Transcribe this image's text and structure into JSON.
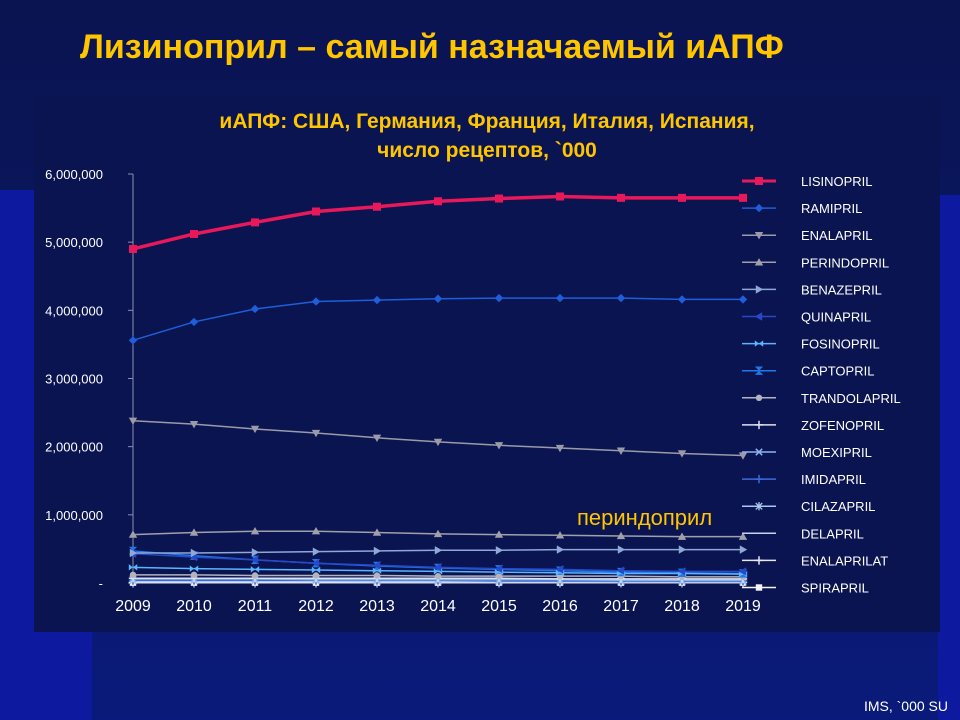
{
  "slide": {
    "title": "Лизиноприл – самый назначаемый иАПФ",
    "source": "IMS, `000 SU"
  },
  "colors": {
    "background": "#0a1450",
    "title": "#ffc600",
    "text": "#ffffff"
  },
  "chart_data": {
    "type": "line",
    "title_line1": "иАПФ: США, Германия, Франция, Италия, Испания,",
    "title_line2": "число рецептов, `000",
    "annotation": "периндоприл",
    "x": [
      "2009",
      "2010",
      "2011",
      "2012",
      "2013",
      "2014",
      "2015",
      "2016",
      "2017",
      "2018",
      "2019"
    ],
    "ylim": [
      0,
      6000000
    ],
    "yticks": [
      0,
      1000000,
      2000000,
      3000000,
      4000000,
      5000000,
      6000000
    ],
    "ytick_labels": [
      "-",
      "1,000,000",
      "2,000,000",
      "3,000,000",
      "4,000,000",
      "5,000,000",
      "6,000,000"
    ],
    "legend_position": "right",
    "series": [
      {
        "name": "LISINOPRIL",
        "color": "#e8195a",
        "marker": "square",
        "width": 3.5,
        "values": [
          4900000,
          5120000,
          5290000,
          5450000,
          5520000,
          5600000,
          5640000,
          5670000,
          5650000,
          5650000,
          5650000
        ]
      },
      {
        "name": "RAMIPRIL",
        "color": "#1f5ed8",
        "marker": "diamond",
        "width": 1.5,
        "values": [
          3560000,
          3830000,
          4020000,
          4130000,
          4150000,
          4170000,
          4180000,
          4180000,
          4180000,
          4160000,
          4160000
        ]
      },
      {
        "name": "ENALAPRIL",
        "color": "#9a9aa8",
        "marker": "tridown",
        "width": 1.5,
        "values": [
          2380000,
          2330000,
          2260000,
          2200000,
          2130000,
          2070000,
          2020000,
          1980000,
          1940000,
          1900000,
          1870000
        ]
      },
      {
        "name": "PERINDOPRIL",
        "color": "#a0a0aa",
        "marker": "triup",
        "width": 1.5,
        "values": [
          710000,
          740000,
          760000,
          760000,
          740000,
          720000,
          710000,
          700000,
          690000,
          680000,
          680000
        ]
      },
      {
        "name": "BENAZEPRIL",
        "color": "#8fa8d8",
        "marker": "triright",
        "width": 1.5,
        "values": [
          440000,
          440000,
          450000,
          460000,
          470000,
          480000,
          480000,
          490000,
          490000,
          490000,
          490000
        ]
      },
      {
        "name": "QUINAPRIL",
        "color": "#2848c8",
        "marker": "trileft",
        "width": 1.5,
        "values": [
          430000,
          380000,
          340000,
          290000,
          260000,
          230000,
          210000,
          200000,
          180000,
          170000,
          170000
        ]
      },
      {
        "name": "FOSINOPRIL",
        "color": "#5ab4ff",
        "marker": "bowtie",
        "width": 1.5,
        "values": [
          230000,
          210000,
          200000,
          190000,
          180000,
          170000,
          160000,
          150000,
          140000,
          140000,
          130000
        ]
      },
      {
        "name": "CAPTOPRIL",
        "color": "#1e78e8",
        "marker": "hourglass",
        "width": 1.5,
        "values": [
          470000,
          400000,
          340000,
          290000,
          250000,
          220000,
          200000,
          180000,
          160000,
          150000,
          140000
        ]
      },
      {
        "name": "TRANDOLAPRIL",
        "color": "#b4b4be",
        "marker": "circle",
        "width": 1.5,
        "values": [
          120000,
          120000,
          110000,
          110000,
          110000,
          100000,
          100000,
          100000,
          100000,
          90000,
          90000
        ]
      },
      {
        "name": "ZOFENOPRIL",
        "color": "#e0e0e8",
        "marker": "plus",
        "width": 1.5,
        "values": [
          70000,
          70000,
          70000,
          70000,
          70000,
          70000,
          70000,
          60000,
          60000,
          60000,
          60000
        ]
      },
      {
        "name": "MOEXIPRIL",
        "color": "#8ab4f0",
        "marker": "x",
        "width": 1.5,
        "values": [
          60000,
          60000,
          60000,
          50000,
          50000,
          50000,
          50000,
          50000,
          40000,
          40000,
          40000
        ]
      },
      {
        "name": "IMIDAPRIL",
        "color": "#3a6ad8",
        "marker": "plus",
        "width": 1.5,
        "values": [
          40000,
          40000,
          40000,
          40000,
          40000,
          40000,
          30000,
          30000,
          30000,
          30000,
          30000
        ]
      },
      {
        "name": "CILAZAPRIL",
        "color": "#a8c8f0",
        "marker": "star",
        "width": 1.5,
        "values": [
          30000,
          30000,
          30000,
          30000,
          20000,
          20000,
          20000,
          20000,
          20000,
          20000,
          20000
        ]
      },
      {
        "name": "DELAPRIL",
        "color": "#c8d2f0",
        "marker": "none",
        "width": 1.5,
        "values": [
          20000,
          20000,
          20000,
          20000,
          20000,
          20000,
          20000,
          20000,
          10000,
          10000,
          10000
        ]
      },
      {
        "name": "ENALAPRILAT",
        "color": "#e8e8f0",
        "marker": "plus",
        "width": 1.5,
        "values": [
          10000,
          10000,
          10000,
          10000,
          10000,
          10000,
          10000,
          10000,
          10000,
          10000,
          10000
        ]
      },
      {
        "name": "SPIRAPRIL",
        "color": "#f4f4f8",
        "marker": "square",
        "width": 1.5,
        "values": [
          5000,
          5000,
          5000,
          5000,
          5000,
          5000,
          5000,
          5000,
          5000,
          5000,
          5000
        ]
      }
    ]
  }
}
